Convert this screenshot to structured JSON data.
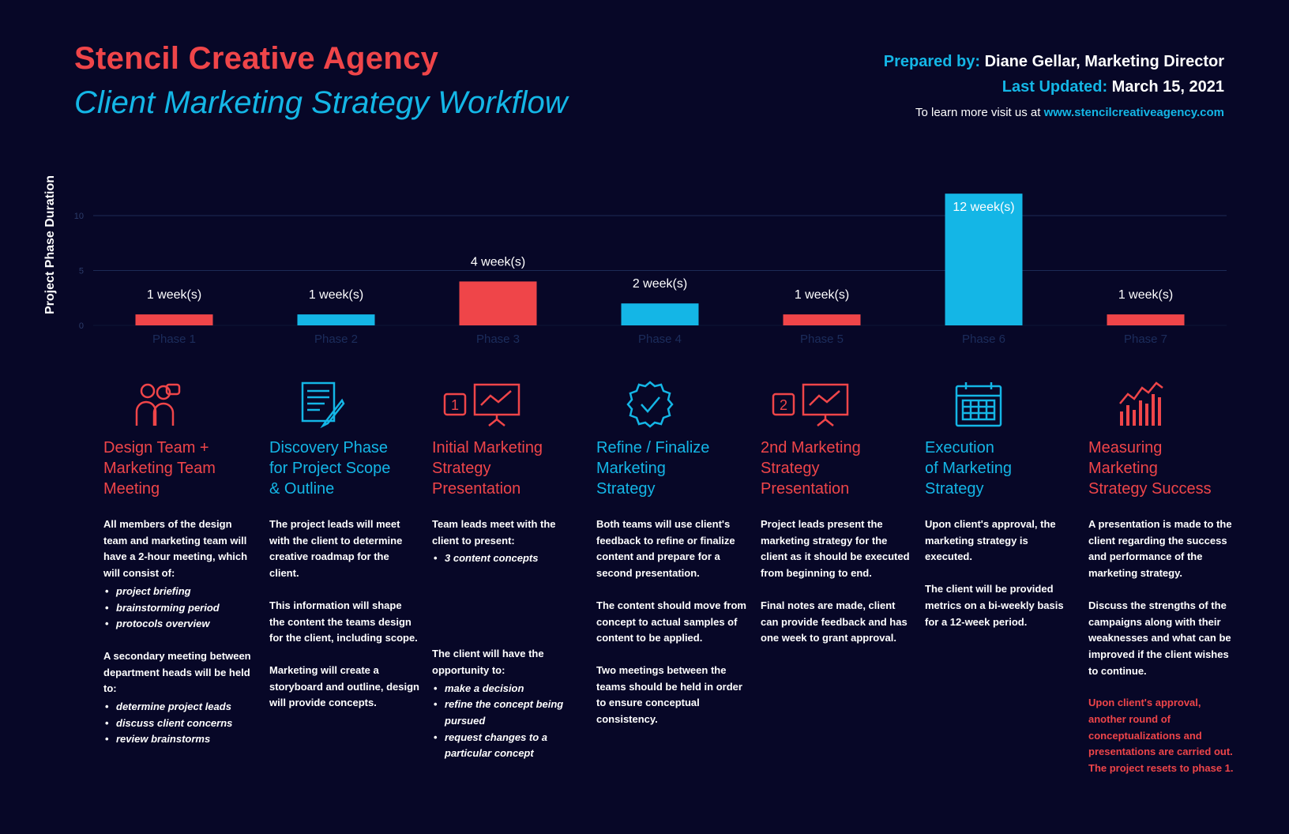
{
  "header": {
    "title": "Stencil Creative Agency",
    "subtitle": "Client Marketing Strategy Workflow",
    "prepared_by_label": "Prepared by:",
    "prepared_by_value": "Diane Gellar, Marketing Director",
    "updated_label": "Last Updated:",
    "updated_value": "March 15, 2021",
    "learn_prefix": "To learn more visit us at",
    "learn_link": "www.stencilcreativeagency.com"
  },
  "colors": {
    "red": "#ef4549",
    "blue": "#14b6e6",
    "background": "#070727"
  },
  "chart_data": {
    "type": "bar",
    "ylabel": "Project  Phase Duration",
    "categories": [
      "Phase 1",
      "Phase 2",
      "Phase 3",
      "Phase 4",
      "Phase 5",
      "Phase 6",
      "Phase 7"
    ],
    "values": [
      1,
      1,
      4,
      2,
      1,
      12,
      1
    ],
    "data_labels": [
      "1 week(s)",
      "1 week(s)",
      "4 week(s)",
      "2 week(s)",
      "1 week(s)",
      "12 week(s)",
      "1 week(s)"
    ],
    "bar_colors": [
      "#ef4549",
      "#14b6e6",
      "#ef4549",
      "#14b6e6",
      "#ef4549",
      "#14b6e6",
      "#ef4549"
    ],
    "yticks": [
      0,
      5,
      10
    ],
    "ylim": [
      0,
      12
    ],
    "grid": true
  },
  "phases": [
    {
      "icon": "team-meeting-icon",
      "title": [
        "Design Team +",
        "Marketing Team",
        "Meeting"
      ],
      "color": "red",
      "blocks": [
        {
          "type": "p",
          "text": "All members of the design team and marketing team will have a 2-hour meeting, which will consist of:"
        },
        {
          "type": "ul",
          "items": [
            "project briefing",
            "brainstorming period",
            "protocols overview"
          ]
        },
        {
          "type": "gap"
        },
        {
          "type": "p",
          "text": "A secondary meeting between department heads will be held to:"
        },
        {
          "type": "ul",
          "items": [
            "determine project leads",
            "discuss client concerns",
            "review brainstorms"
          ]
        }
      ]
    },
    {
      "icon": "document-pen-icon",
      "title": [
        "Discovery Phase",
        "for Project Scope",
        "& Outline"
      ],
      "color": "blue",
      "blocks": [
        {
          "type": "p",
          "text": "The project leads will meet with the client to determine creative roadmap for the client."
        },
        {
          "type": "gap"
        },
        {
          "type": "p",
          "text": "This information will shape the content the teams design for the client, including scope."
        },
        {
          "type": "gap"
        },
        {
          "type": "p",
          "text": "Marketing will create a storyboard and outline, design will provide concepts."
        }
      ]
    },
    {
      "icon": "presentation-one-icon",
      "title": [
        "Initial Marketing",
        "Strategy",
        "Presentation"
      ],
      "color": "red",
      "blocks": [
        {
          "type": "p",
          "text": "Team leads meet with the client to present:"
        },
        {
          "type": "ul",
          "items": [
            "3 content concepts"
          ]
        },
        {
          "type": "bigspace"
        },
        {
          "type": "p",
          "text": "The client will have the opportunity to:"
        },
        {
          "type": "ul",
          "items": [
            "make a decision",
            "refine the concept being pursued",
            "request changes to a particular concept"
          ]
        }
      ]
    },
    {
      "icon": "check-badge-icon",
      "title": [
        "Refine / Finalize",
        "Marketing",
        "Strategy"
      ],
      "color": "blue",
      "blocks": [
        {
          "type": "p",
          "text": "Both teams will use client's feedback to refine or finalize content and prepare for a second presentation."
        },
        {
          "type": "gap"
        },
        {
          "type": "p",
          "text": "The content should move from concept to actual samples of content to be applied."
        },
        {
          "type": "gap"
        },
        {
          "type": "p",
          "text": "Two meetings between the teams should be held in order to ensure conceptual consistency."
        }
      ]
    },
    {
      "icon": "presentation-two-icon",
      "title": [
        "2nd Marketing",
        "Strategy",
        "Presentation"
      ],
      "color": "red",
      "blocks": [
        {
          "type": "p",
          "text": "Project leads present the marketing strategy for the client as it should be executed from beginning to end."
        },
        {
          "type": "gap"
        },
        {
          "type": "p",
          "text": "Final notes are made, client can provide feedback and has one week to grant approval."
        }
      ]
    },
    {
      "icon": "calendar-icon",
      "title": [
        "Execution",
        "of Marketing",
        "Strategy"
      ],
      "color": "blue",
      "blocks": [
        {
          "type": "p",
          "text": "Upon client's approval, the marketing strategy is executed."
        },
        {
          "type": "gap"
        },
        {
          "type": "p",
          "text": "The client will be provided metrics on a bi-weekly basis for a 12-week period."
        }
      ]
    },
    {
      "icon": "bar-growth-icon",
      "title": [
        "Measuring",
        "Marketing",
        "Strategy Success"
      ],
      "color": "red",
      "blocks": [
        {
          "type": "p",
          "text": "A presentation is made to the client regarding the success and performance of the marketing strategy."
        },
        {
          "type": "gap"
        },
        {
          "type": "p",
          "text": "Discuss the strengths of the campaigns along with their weaknesses and what can be improved if the client wishes to continue."
        },
        {
          "type": "gap"
        },
        {
          "type": "p",
          "red": true,
          "text": "Upon client's approval, another round of conceptualizations and presentations are carried out. The project resets to phase 1."
        }
      ]
    }
  ]
}
